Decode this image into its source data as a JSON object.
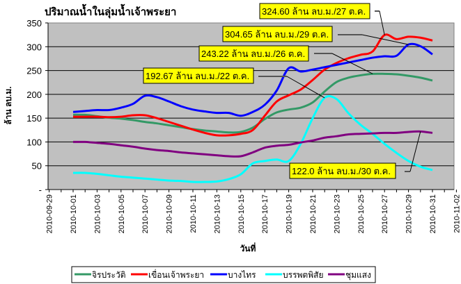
{
  "chart_data": {
    "type": "line",
    "title": "ปริมาณน้ำในลุ่มน้ำเจ้าพระยา",
    "xlabel": "วันที่",
    "ylabel": "ล้าน ลบ.ม.",
    "ylim": [
      0,
      350
    ],
    "yticks": [
      "350",
      "300",
      "250",
      "200",
      "150",
      "100",
      "50",
      "-"
    ],
    "ytick_values": [
      350,
      300,
      250,
      200,
      150,
      100,
      50,
      0
    ],
    "xtick_labels": [
      "2010-09-29",
      "2010-10-01",
      "2010-10-03",
      "2010-10-05",
      "2010-10-07",
      "2010-10-09",
      "2010-10-11",
      "2010-10-13",
      "2010-10-15",
      "2010-10-17",
      "2010-10-19",
      "2010-10-21",
      "2010-10-23",
      "2010-10-25",
      "2010-10-27",
      "2010-10-29",
      "2010-10-31",
      "2010-11-02"
    ],
    "xlim": [
      "2010-09-29",
      "2010-11-02"
    ],
    "x_start": "2010-10-01",
    "grid": true,
    "legend_position": "bottom",
    "series": [
      {
        "name": "จิรประวัติ",
        "color": "#339966",
        "values": [
          157,
          157,
          154,
          151,
          149,
          146,
          142,
          139,
          135,
          131,
          127,
          124,
          122,
          120,
          121,
          130,
          148,
          162,
          168,
          172,
          183,
          206,
          226,
          235,
          240,
          243,
          243,
          242,
          239,
          235,
          229
        ]
      },
      {
        "name": "เขื่อนเจ้าพระยา",
        "color": "#FF0000",
        "values": [
          153,
          153,
          153,
          152,
          153,
          156,
          156,
          150,
          142,
          134,
          126,
          119,
          114,
          114,
          117,
          125,
          155,
          185,
          198,
          210,
          230,
          252,
          266,
          276,
          283,
          290,
          324.6,
          316,
          321,
          319,
          313
        ]
      },
      {
        "name": "บางไทร",
        "color": "#0000FF",
        "values": [
          163,
          165,
          167,
          167,
          172,
          180,
          197,
          194,
          185,
          175,
          168,
          164,
          161,
          161,
          155,
          163,
          178,
          208,
          255,
          248,
          252,
          257,
          262,
          267,
          272,
          277,
          280,
          281,
          304.65,
          301,
          284
        ]
      },
      {
        "name": "บรรพตพิสัย",
        "color": "#00FFFF",
        "values": [
          35,
          35,
          33,
          30,
          27,
          25,
          23,
          21,
          19,
          18,
          16,
          16,
          17,
          22,
          32,
          55,
          60,
          63,
          60,
          96,
          150,
          192.67,
          190,
          160,
          136,
          117,
          96,
          77,
          60,
          48,
          41
        ]
      },
      {
        "name": "ชุมแสง",
        "color": "#800080",
        "values": [
          100,
          100,
          98,
          96,
          93,
          90,
          86,
          83,
          81,
          78,
          76,
          74,
          72,
          70,
          70,
          78,
          88,
          92,
          94,
          99,
          103,
          109,
          112,
          116,
          117,
          118,
          119,
          119,
          121,
          122,
          119
        ]
      }
    ],
    "annotations": [
      {
        "label": "324.60 ล้าน ลบ.ม./27 ต.ค.",
        "series": "เขื่อนเจ้าพระยา",
        "day": 27,
        "value": 324.6
      },
      {
        "label": "304.65 ล้าน ลบ.ม./29 ต.ค.",
        "series": "บางไทร",
        "day": 29,
        "value": 304.65
      },
      {
        "label": "243.22 ล้าน ลบ.ม./26 ต.ค.",
        "series": "จิรประวัติ",
        "day": 26,
        "value": 243.22
      },
      {
        "label": "192.67 ล้าน ลบ.ม./22 ต.ค.",
        "series": "บรรพตพิสัย",
        "day": 22,
        "value": 192.67
      },
      {
        "label": "122.0 ล้าน ลบ.ม./30 ต.ค.",
        "series": "ชุมแสง",
        "day": 30,
        "value": 122.0
      }
    ]
  }
}
